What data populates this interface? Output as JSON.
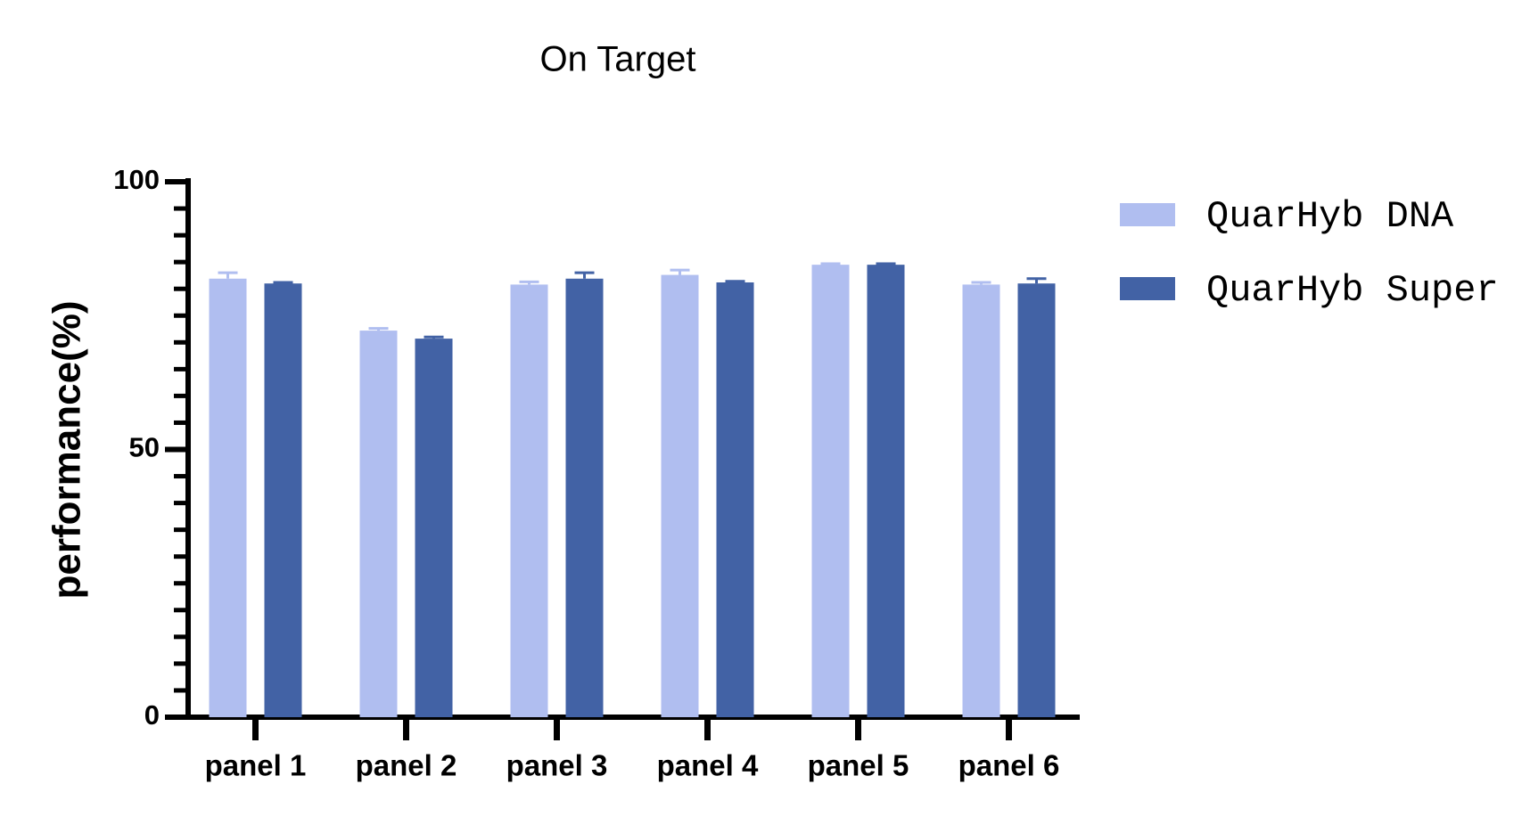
{
  "chart_data": {
    "type": "bar",
    "title": "On Target",
    "y_label": "performance(%)",
    "categories": [
      "panel 1",
      "panel 2",
      "panel 3",
      "panel 4",
      "panel 5",
      "panel 6"
    ],
    "series": [
      {
        "name": "QuarHyb DNA",
        "color": "#b0bef0",
        "values": [
          81.9,
          72.2,
          80.8,
          82.6,
          84.5,
          80.8
        ],
        "errors": [
          1.1,
          0.4,
          0.5,
          0.9,
          0.2,
          0.4
        ]
      },
      {
        "name": "QuarHyb Super",
        "color": "#4262a5",
        "values": [
          81.0,
          70.7,
          81.9,
          81.2,
          84.5,
          81.0
        ],
        "errors": [
          0.2,
          0.3,
          1.1,
          0.2,
          0.2,
          0.9
        ]
      }
    ],
    "ylim": [
      0,
      100
    ],
    "yticks": [
      0,
      50,
      100
    ],
    "yminorticks": [
      5,
      10,
      15,
      20,
      25,
      30,
      35,
      40,
      45,
      55,
      60,
      65,
      70,
      75,
      80,
      85,
      90,
      95
    ],
    "legend": "right"
  }
}
